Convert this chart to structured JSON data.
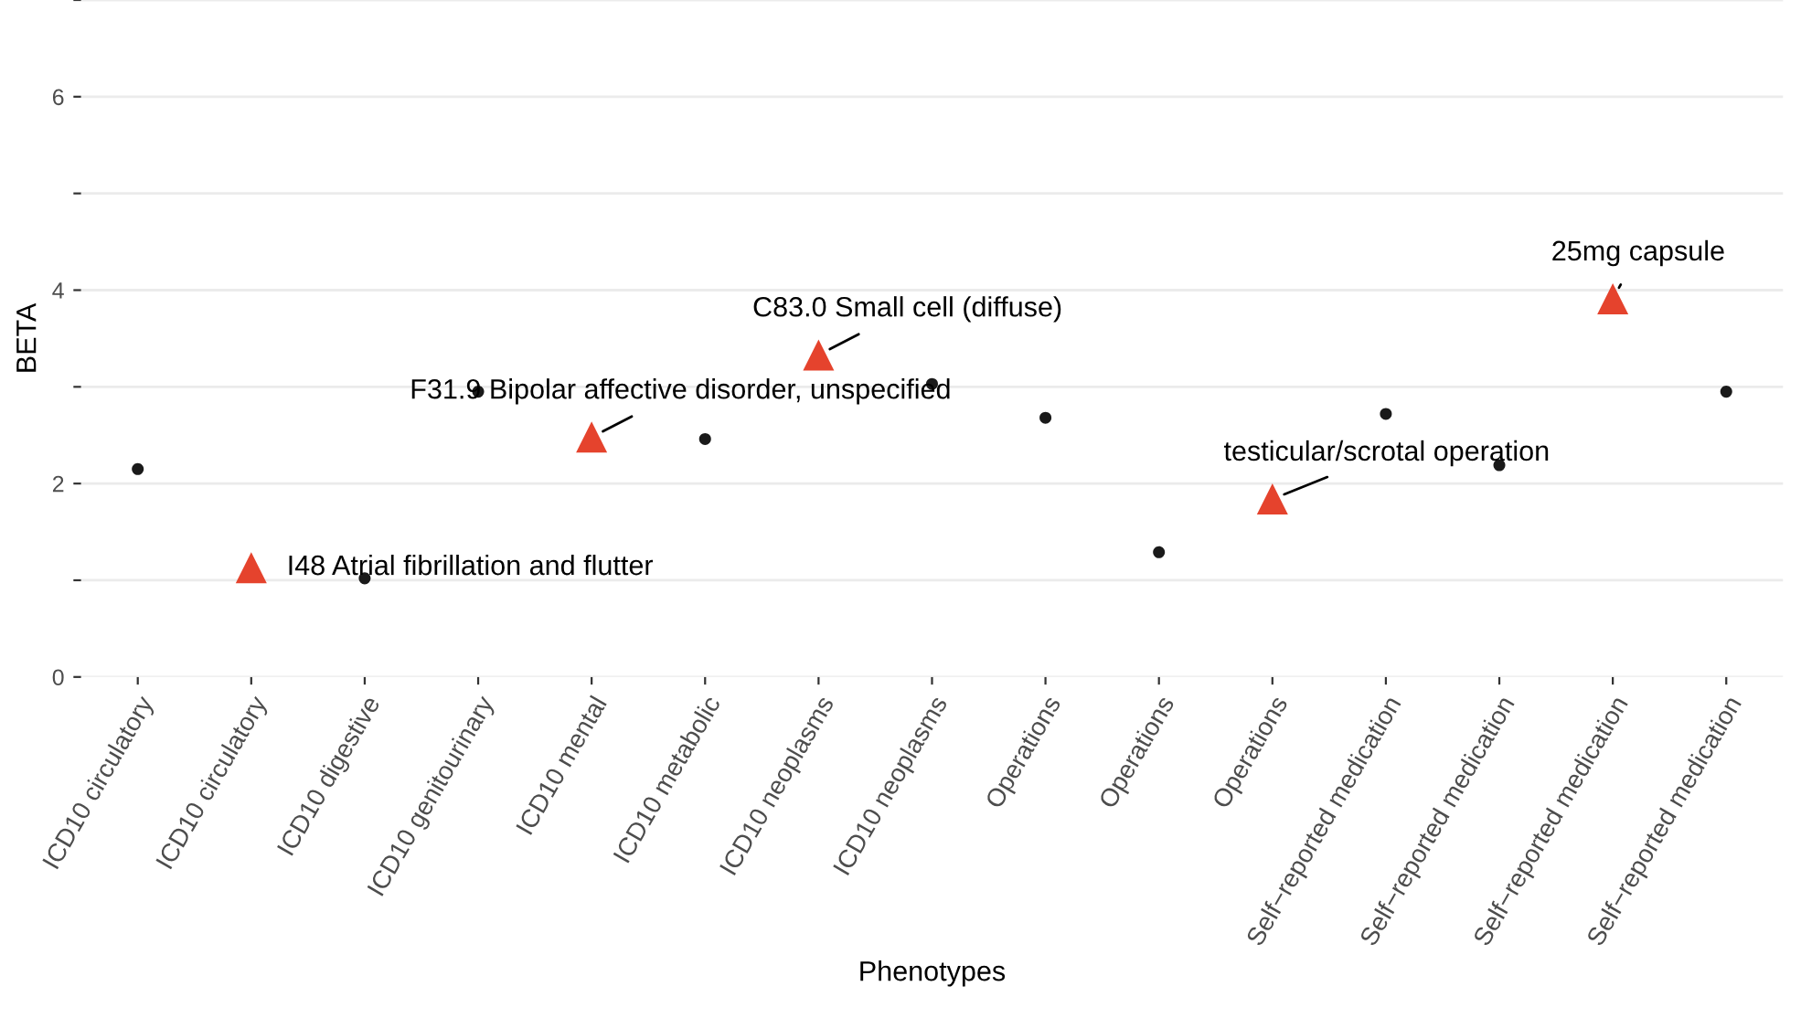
{
  "chart_data": {
    "type": "scatter",
    "xlabel": "Phenotypes",
    "ylabel": "BETA",
    "categories": [
      "ICD10 circulatory",
      "ICD10 circulatory",
      "ICD10 digestive",
      "ICD10 genitourinary",
      "ICD10 mental",
      "ICD10 metabolic",
      "ICD10 neoplasms",
      "ICD10 neoplasms",
      "Operations",
      "Operations",
      "Operations",
      "Self−reported medication",
      "Self−reported medication",
      "Self−reported medication",
      "Self−reported medication"
    ],
    "series": [
      {
        "color": "#1a1a1a",
        "marker": "circle",
        "values": [
          2.15,
          null,
          1.02,
          2.95,
          null,
          2.46,
          null,
          3.03,
          2.68,
          1.29,
          null,
          2.72,
          2.19,
          null,
          2.95
        ]
      },
      {
        "color": "#e5432d",
        "marker": "triangle",
        "values": [
          null,
          1.13,
          null,
          null,
          2.48,
          null,
          3.33,
          null,
          null,
          null,
          1.84,
          null,
          null,
          3.91,
          null
        ]
      }
    ],
    "annotations": [
      "I48 Atrial fibrillation and flutter",
      "F31.9 Bipolar affective disorder, unspecified",
      "C83.0 Small cell (diffuse)",
      "testicular/scrotal operation",
      "25mg capsule"
    ],
    "ylim": [
      0,
      7
    ],
    "yticks": [
      0,
      {
        "value": 1,
        "label": null
      },
      2,
      {
        "value": 3,
        "label": null
      },
      4,
      {
        "value": 5,
        "label": null
      },
      6,
      {
        "value": 7,
        "label": null
      }
    ],
    "grid": "y",
    "legend": false
  }
}
